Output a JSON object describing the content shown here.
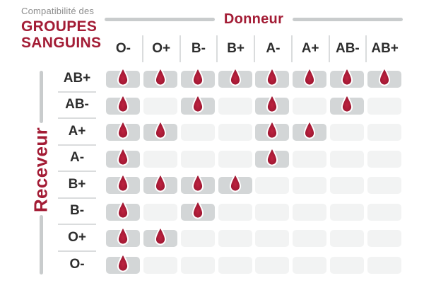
{
  "title": {
    "subtitle": "Compatibilité des",
    "line1": "GROUPES",
    "line2": "SANGUINS"
  },
  "donor_axis": {
    "label": "Donneur"
  },
  "receiver_axis": {
    "label": "Receveur"
  },
  "colors": {
    "red": "#A31C35",
    "title_gray": "#8C8C8C",
    "dark": "#2D2D2D",
    "cell_on": "#D3D6D7",
    "cell_off": "#F2F3F3",
    "sep": "#DADCDD",
    "axis_line": "#C9CCCD",
    "drop_center": "#BE2340",
    "drop_edge": "#99152F",
    "drop_stroke": "#FFFFFF"
  },
  "chart_data": {
    "type": "heatmap",
    "title": "Compatibilité des groupes sanguins",
    "xlabel": "Donneur",
    "ylabel": "Receveur",
    "columns": [
      "O-",
      "O+",
      "B-",
      "B+",
      "A-",
      "A+",
      "AB-",
      "AB+"
    ],
    "rows": [
      "AB+",
      "AB-",
      "A+",
      "A-",
      "B+",
      "B-",
      "O+",
      "O-"
    ],
    "values": [
      [
        1,
        1,
        1,
        1,
        1,
        1,
        1,
        1
      ],
      [
        1,
        0,
        1,
        0,
        1,
        0,
        1,
        0
      ],
      [
        1,
        1,
        0,
        0,
        1,
        1,
        0,
        0
      ],
      [
        1,
        0,
        0,
        0,
        1,
        0,
        0,
        0
      ],
      [
        1,
        1,
        1,
        1,
        0,
        0,
        0,
        0
      ],
      [
        1,
        0,
        1,
        0,
        0,
        0,
        0,
        0
      ],
      [
        1,
        1,
        0,
        0,
        0,
        0,
        0,
        0
      ],
      [
        1,
        0,
        0,
        0,
        0,
        0,
        0,
        0
      ]
    ],
    "value_meaning": {
      "1": "compatible — goutte de sang sur case grise",
      "0": "incompatible — case gris clair vide"
    },
    "legend_position": "none",
    "grid": false
  }
}
